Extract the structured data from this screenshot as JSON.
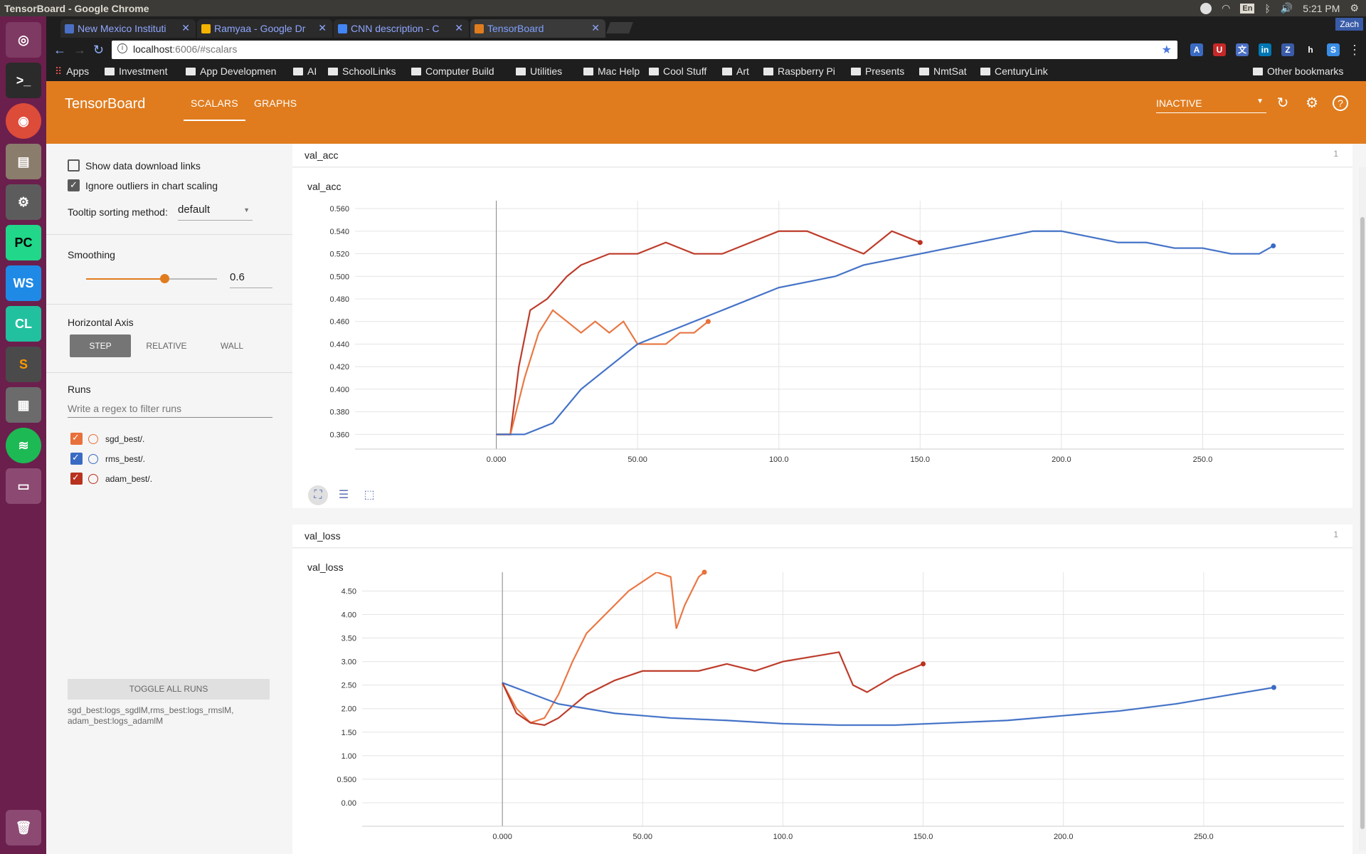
{
  "window": {
    "title": "TensorBoard - Google Chrome",
    "time": "5:21 PM",
    "lang": "En",
    "user": "Zach"
  },
  "tabs": [
    {
      "label": "New Mexico Instituti",
      "color": "#4a6fc4"
    },
    {
      "label": "Ramyaa - Google Dr",
      "color": "#f4b400"
    },
    {
      "label": "CNN description - C",
      "color": "#4285f4"
    },
    {
      "label": "TensorBoard",
      "color": "#e07c1e"
    }
  ],
  "omnibox": {
    "host": "localhost",
    "path": ":6006/#scalars"
  },
  "bookmarks": {
    "apps": "Apps",
    "items": [
      "Investment",
      "App Developmen",
      "AI",
      "SchoolLinks",
      "Computer Build",
      "Utilities",
      "Mac Help",
      "Cool Stuff",
      "Art",
      "Raspberry Pi",
      "Presents",
      "NmtSat",
      "CenturyLink"
    ],
    "other": "Other bookmarks"
  },
  "header": {
    "title": "TensorBoard",
    "tabs": [
      "SCALARS",
      "GRAPHS"
    ],
    "status": "INACTIVE"
  },
  "sidebar": {
    "show_download": "Show data download links",
    "ignore_outliers": "Ignore outliers in chart scaling",
    "tooltip_label": "Tooltip sorting method:",
    "tooltip_value": "default",
    "smoothing_label": "Smoothing",
    "smoothing_value": "0.6",
    "smoothing_fraction": 0.6,
    "haxis_label": "Horizontal Axis",
    "haxis_options": [
      "STEP",
      "RELATIVE",
      "WALL"
    ],
    "runs_label": "Runs",
    "runs_filter_placeholder": "Write a regex to filter runs",
    "runs": [
      {
        "name": "sgd_best/.",
        "color": "#e8703a"
      },
      {
        "name": "rms_best/.",
        "color": "#3a6bc4"
      },
      {
        "name": "adam_best/.",
        "color": "#b9311f"
      }
    ],
    "toggle_all": "TOGGLE ALL RUNS",
    "footnote": "sgd_best:logs_sgdlM,rms_best:logs_rmslM, adam_best:logs_adamlM"
  },
  "cards": [
    {
      "name": "val_acc",
      "count": "1"
    },
    {
      "name": "val_loss",
      "count": "1"
    }
  ],
  "chart_data": [
    {
      "type": "line",
      "title": "val_acc",
      "xlim": [
        -50,
        300
      ],
      "ylim": [
        0.347,
        0.567
      ],
      "xticks": [
        "0.000",
        "50.00",
        "100.0",
        "150.0",
        "200.0",
        "250.0"
      ],
      "xtick_values": [
        0,
        50,
        100,
        150,
        200,
        250
      ],
      "yticks": [
        "0.360",
        "0.380",
        "0.400",
        "0.420",
        "0.440",
        "0.460",
        "0.480",
        "0.500",
        "0.520",
        "0.540",
        "0.560"
      ],
      "ytick_values": [
        0.36,
        0.38,
        0.4,
        0.42,
        0.44,
        0.46,
        0.48,
        0.5,
        0.52,
        0.54,
        0.56
      ],
      "series": [
        {
          "name": "adam_best/.",
          "color": "#b9311f",
          "x": [
            0,
            5,
            8,
            12,
            18,
            25,
            30,
            40,
            50,
            60,
            70,
            80,
            90,
            100,
            110,
            120,
            130,
            140,
            150
          ],
          "y": [
            0.36,
            0.36,
            0.42,
            0.47,
            0.48,
            0.5,
            0.51,
            0.52,
            0.52,
            0.53,
            0.52,
            0.52,
            0.53,
            0.54,
            0.54,
            0.53,
            0.52,
            0.54,
            0.53
          ]
        },
        {
          "name": "sgd_best/.",
          "color": "#e8703a",
          "x": [
            0,
            5,
            10,
            15,
            20,
            25,
            30,
            35,
            40,
            45,
            50,
            55,
            60,
            65,
            70,
            75
          ],
          "y": [
            0.36,
            0.36,
            0.41,
            0.45,
            0.47,
            0.46,
            0.45,
            0.46,
            0.45,
            0.46,
            0.44,
            0.44,
            0.44,
            0.45,
            0.45,
            0.46
          ]
        },
        {
          "name": "rms_best/.",
          "color": "#3a6bc4",
          "x": [
            0,
            10,
            20,
            30,
            40,
            50,
            60,
            70,
            80,
            90,
            100,
            110,
            120,
            130,
            140,
            150,
            160,
            170,
            180,
            190,
            200,
            210,
            220,
            230,
            240,
            250,
            260,
            270,
            275
          ],
          "y": [
            0.36,
            0.36,
            0.37,
            0.4,
            0.42,
            0.44,
            0.45,
            0.46,
            0.47,
            0.48,
            0.49,
            0.495,
            0.5,
            0.51,
            0.515,
            0.52,
            0.525,
            0.53,
            0.535,
            0.54,
            0.54,
            0.535,
            0.53,
            0.53,
            0.525,
            0.525,
            0.52,
            0.52,
            0.527
          ]
        }
      ]
    },
    {
      "type": "line",
      "title": "val_loss",
      "xlim": [
        -50,
        300
      ],
      "ylim": [
        -0.5,
        4.9
      ],
      "xticks": [
        "0.000",
        "50.00",
        "100.0",
        "150.0",
        "200.0",
        "250.0"
      ],
      "xtick_values": [
        0,
        50,
        100,
        150,
        200,
        250
      ],
      "yticks": [
        "0.00",
        "0.500",
        "1.00",
        "1.50",
        "2.00",
        "2.50",
        "3.00",
        "3.50",
        "4.00",
        "4.50"
      ],
      "ytick_values": [
        0,
        0.5,
        1.0,
        1.5,
        2.0,
        2.5,
        3.0,
        3.5,
        4.0,
        4.5
      ],
      "series": [
        {
          "name": "sgd_best/.",
          "color": "#e8703a",
          "x": [
            0,
            5,
            10,
            15,
            20,
            25,
            30,
            35,
            40,
            45,
            50,
            55,
            60,
            62,
            65,
            70,
            72
          ],
          "y": [
            2.55,
            2.0,
            1.7,
            1.8,
            2.3,
            3.0,
            3.6,
            3.9,
            4.2,
            4.5,
            4.7,
            4.9,
            4.8,
            3.7,
            4.2,
            4.8,
            4.9
          ]
        },
        {
          "name": "adam_best/.",
          "color": "#b9311f",
          "x": [
            0,
            5,
            10,
            15,
            20,
            30,
            40,
            50,
            60,
            70,
            80,
            90,
            100,
            110,
            120,
            125,
            130,
            140,
            150
          ],
          "y": [
            2.55,
            1.9,
            1.7,
            1.65,
            1.8,
            2.3,
            2.6,
            2.8,
            2.8,
            2.8,
            2.95,
            2.8,
            3.0,
            3.1,
            3.2,
            2.5,
            2.35,
            2.7,
            2.95
          ]
        },
        {
          "name": "rms_best/.",
          "color": "#3a6bc4",
          "x": [
            0,
            20,
            40,
            60,
            80,
            100,
            120,
            140,
            160,
            180,
            200,
            220,
            240,
            260,
            275
          ],
          "y": [
            2.55,
            2.1,
            1.9,
            1.8,
            1.75,
            1.68,
            1.65,
            1.65,
            1.7,
            1.75,
            1.85,
            1.95,
            2.1,
            2.3,
            2.45
          ]
        }
      ]
    }
  ]
}
